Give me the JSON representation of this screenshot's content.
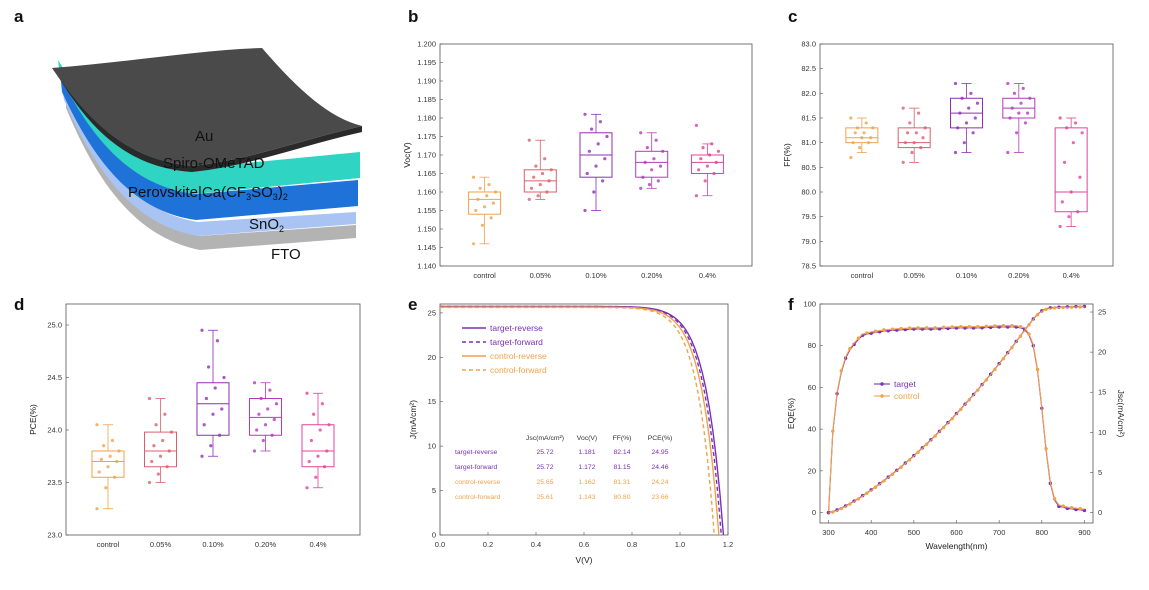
{
  "panel_labels": {
    "a": "a",
    "b": "b",
    "c": "c",
    "d": "d",
    "e": "e",
    "f": "f"
  },
  "colors": {
    "control": "#F0A24A",
    "c005": "#D8606B",
    "c010": "#8E2FB3",
    "c020": "#B23BB8",
    "c04": "#E0449A",
    "target": "#7A2FB5"
  },
  "layers": {
    "au": "Au",
    "spiro": "Spiro-OMeTAD",
    "perovskite": "Perovskite|Ca(CF",
    "perovskite_sub1": "3",
    "perovskite_mid": "SO",
    "perovskite_sub2": "3",
    "perovskite_close": ")",
    "perovskite_sub3": "2",
    "sno2": "SnO",
    "sno2_sub": "2",
    "fto": "FTO"
  },
  "chart_data": [
    {
      "id": "b",
      "type": "box",
      "ylabel": "Voc(V)",
      "categories": [
        "control",
        "0.05%",
        "0.10%",
        "0.20%",
        "0.4%"
      ],
      "ylim": [
        1.14,
        1.2
      ],
      "yticks": [
        "1.140",
        "1.145",
        "1.150",
        "1.155",
        "1.160",
        "1.165",
        "1.170",
        "1.175",
        "1.180",
        "1.185",
        "1.190",
        "1.195",
        "1.200"
      ],
      "ytick_values": [
        1.14,
        1.145,
        1.15,
        1.155,
        1.16,
        1.165,
        1.17,
        1.175,
        1.18,
        1.185,
        1.19,
        1.195,
        1.2
      ],
      "boxes": [
        {
          "min": 1.146,
          "q1": 1.154,
          "median": 1.158,
          "q3": 1.16,
          "max": 1.164
        },
        {
          "min": 1.158,
          "q1": 1.16,
          "median": 1.163,
          "q3": 1.166,
          "max": 1.174
        },
        {
          "min": 1.155,
          "q1": 1.164,
          "median": 1.17,
          "q3": 1.176,
          "max": 1.181
        },
        {
          "min": 1.161,
          "q1": 1.164,
          "median": 1.168,
          "q3": 1.171,
          "max": 1.176
        },
        {
          "min": 1.159,
          "q1": 1.165,
          "median": 1.168,
          "q3": 1.17,
          "max": 1.173
        }
      ],
      "points": [
        [
          1.146,
          1.151,
          1.153,
          1.155,
          1.156,
          1.157,
          1.158,
          1.159,
          1.16,
          1.161,
          1.162,
          1.164
        ],
        [
          1.158,
          1.159,
          1.16,
          1.161,
          1.162,
          1.163,
          1.164,
          1.165,
          1.166,
          1.167,
          1.169,
          1.174
        ],
        [
          1.155,
          1.16,
          1.163,
          1.165,
          1.167,
          1.169,
          1.171,
          1.173,
          1.175,
          1.177,
          1.179,
          1.181
        ],
        [
          1.161,
          1.162,
          1.163,
          1.164,
          1.166,
          1.167,
          1.168,
          1.169,
          1.171,
          1.172,
          1.174,
          1.176
        ],
        [
          1.159,
          1.163,
          1.165,
          1.166,
          1.167,
          1.168,
          1.169,
          1.17,
          1.171,
          1.172,
          1.173,
          1.178
        ]
      ]
    },
    {
      "id": "c",
      "type": "box",
      "ylabel": "FF(%)",
      "categories": [
        "control",
        "0.05%",
        "0.10%",
        "0.20%",
        "0.4%"
      ],
      "ylim": [
        78.5,
        83.0
      ],
      "yticks": [
        "78.5",
        "79.0",
        "79.5",
        "80.0",
        "80.5",
        "81.0",
        "81.5",
        "82.0",
        "82.5",
        "83.0"
      ],
      "ytick_values": [
        78.5,
        79.0,
        79.5,
        80.0,
        80.5,
        81.0,
        81.5,
        82.0,
        82.5,
        83.0
      ],
      "boxes": [
        {
          "min": 80.8,
          "q1": 81.0,
          "median": 81.1,
          "q3": 81.3,
          "max": 81.5
        },
        {
          "min": 80.6,
          "q1": 80.9,
          "median": 81.0,
          "q3": 81.3,
          "max": 81.7
        },
        {
          "min": 80.8,
          "q1": 81.3,
          "median": 81.6,
          "q3": 81.9,
          "max": 82.2
        },
        {
          "min": 80.8,
          "q1": 81.5,
          "median": 81.7,
          "q3": 81.9,
          "max": 82.2
        },
        {
          "min": 79.3,
          "q1": 79.6,
          "median": 80.0,
          "q3": 81.3,
          "max": 81.5
        }
      ],
      "points": [
        [
          80.7,
          80.9,
          81.0,
          81.0,
          81.1,
          81.1,
          81.2,
          81.2,
          81.3,
          81.3,
          81.4,
          81.5
        ],
        [
          80.6,
          80.8,
          80.9,
          81.0,
          81.0,
          81.1,
          81.2,
          81.2,
          81.3,
          81.4,
          81.6,
          81.7
        ],
        [
          80.8,
          81.0,
          81.2,
          81.3,
          81.4,
          81.5,
          81.6,
          81.7,
          81.8,
          81.9,
          82.0,
          82.2
        ],
        [
          80.8,
          81.2,
          81.4,
          81.5,
          81.6,
          81.6,
          81.7,
          81.8,
          81.9,
          82.0,
          82.1,
          82.2
        ],
        [
          79.3,
          79.5,
          79.6,
          79.8,
          80.0,
          80.3,
          80.6,
          81.0,
          81.2,
          81.3,
          81.4,
          81.5
        ]
      ]
    },
    {
      "id": "d",
      "type": "box",
      "ylabel": "PCE(%)",
      "categories": [
        "control",
        "0.05%",
        "0.10%",
        "0.20%",
        "0.4%"
      ],
      "ylim": [
        23.0,
        25.2
      ],
      "yticks": [
        "23.0",
        "23.5",
        "24.0",
        "24.5",
        "25.0"
      ],
      "ytick_values": [
        23.0,
        23.5,
        24.0,
        24.5,
        25.0
      ],
      "boxes": [
        {
          "min": 23.25,
          "q1": 23.55,
          "median": 23.7,
          "q3": 23.8,
          "max": 24.05
        },
        {
          "min": 23.5,
          "q1": 23.65,
          "median": 23.8,
          "q3": 23.98,
          "max": 24.3
        },
        {
          "min": 23.75,
          "q1": 23.95,
          "median": 24.25,
          "q3": 24.45,
          "max": 24.95
        },
        {
          "min": 23.8,
          "q1": 23.95,
          "median": 24.12,
          "q3": 24.3,
          "max": 24.45
        },
        {
          "min": 23.45,
          "q1": 23.65,
          "median": 23.8,
          "q3": 24.05,
          "max": 24.35
        }
      ],
      "points": [
        [
          23.25,
          23.45,
          23.55,
          23.6,
          23.65,
          23.7,
          23.72,
          23.75,
          23.8,
          23.85,
          23.9,
          24.05
        ],
        [
          23.5,
          23.58,
          23.65,
          23.7,
          23.75,
          23.8,
          23.85,
          23.9,
          23.98,
          24.05,
          24.15,
          24.3
        ],
        [
          23.75,
          23.85,
          23.95,
          24.05,
          24.15,
          24.2,
          24.3,
          24.4,
          24.5,
          24.6,
          24.85,
          24.95
        ],
        [
          23.8,
          23.9,
          23.95,
          24.0,
          24.05,
          24.1,
          24.15,
          24.2,
          24.25,
          24.3,
          24.38,
          24.45
        ],
        [
          23.45,
          23.55,
          23.65,
          23.7,
          23.75,
          23.8,
          23.9,
          24.0,
          24.05,
          24.15,
          24.25,
          24.35
        ]
      ]
    },
    {
      "id": "e",
      "type": "line",
      "xlabel": "V(V)",
      "ylabel": "J(mA/cm²)",
      "xlim": [
        0.0,
        1.2
      ],
      "ylim": [
        0,
        26
      ],
      "xticks": [
        "0.0",
        "0.2",
        "0.4",
        "0.6",
        "0.8",
        "1.0",
        "1.2"
      ],
      "xtick_values": [
        0.0,
        0.2,
        0.4,
        0.6,
        0.8,
        1.0,
        1.2
      ],
      "yticks": [
        "0",
        "5",
        "10",
        "15",
        "20",
        "25"
      ],
      "ytick_values": [
        0,
        5,
        10,
        15,
        20,
        25
      ],
      "series": [
        {
          "name": "target-reverse",
          "style": "solid",
          "color": "#7A2FB5",
          "jsc": 25.72,
          "voc": 1.181
        },
        {
          "name": "target-forward",
          "style": "dashed",
          "color": "#7A2FB5",
          "jsc": 25.72,
          "voc": 1.172
        },
        {
          "name": "control-reverse",
          "style": "solid",
          "color": "#F0A24A",
          "jsc": 25.65,
          "voc": 1.162
        },
        {
          "name": "control-forward",
          "style": "dashed",
          "color": "#F0A24A",
          "jsc": 25.61,
          "voc": 1.143
        }
      ],
      "table": {
        "headers": [
          "Jsc(mA/cm²)",
          "Voc(V)",
          "FF(%)",
          "PCE(%)"
        ],
        "rows": [
          {
            "label": "target-reverse",
            "values": [
              "25.72",
              "1.181",
              "82.14",
              "24.95"
            ]
          },
          {
            "label": "target-forward",
            "values": [
              "25.72",
              "1.172",
              "81.15",
              "24.46"
            ]
          },
          {
            "label": "control-reverse",
            "values": [
              "25.65",
              "1.162",
              "81.31",
              "24.24"
            ]
          },
          {
            "label": "control-forward",
            "values": [
              "25.61",
              "1.143",
              "80.80",
              "23.66"
            ]
          }
        ]
      }
    },
    {
      "id": "f",
      "type": "line",
      "xlabel": "Wavelength(nm)",
      "ylabel": "EQE(%)",
      "ylabel2": "Jsc(mA/cm²)",
      "xlim": [
        280,
        920
      ],
      "ylim": [
        -5,
        100
      ],
      "y2lim": [
        -1.3,
        26
      ],
      "xticks": [
        "300",
        "400",
        "500",
        "600",
        "700",
        "800",
        "900"
      ],
      "xtick_values": [
        300,
        400,
        500,
        600,
        700,
        800,
        900
      ],
      "yticks": [
        "0",
        "20",
        "40",
        "60",
        "80",
        "100"
      ],
      "ytick_values": [
        0,
        20,
        40,
        60,
        80,
        100
      ],
      "y2ticks": [
        "0",
        "5",
        "10",
        "15",
        "20",
        "25"
      ],
      "y2tick_values": [
        0,
        5,
        10,
        15,
        20,
        25
      ],
      "series": [
        {
          "name": "target",
          "color": "#7A2FB5"
        },
        {
          "name": "control",
          "color": "#F0A24A"
        }
      ],
      "eqe_knots": [
        [
          300,
          0
        ],
        [
          305,
          22
        ],
        [
          312,
          45
        ],
        [
          322,
          60
        ],
        [
          335,
          72
        ],
        [
          350,
          78
        ],
        [
          365,
          82
        ],
        [
          380,
          85
        ],
        [
          400,
          86
        ],
        [
          430,
          87
        ],
        [
          460,
          87.5
        ],
        [
          500,
          88
        ],
        [
          550,
          88
        ],
        [
          600,
          88.5
        ],
        [
          650,
          88.5
        ],
        [
          700,
          89
        ],
        [
          740,
          89
        ],
        [
          760,
          88
        ],
        [
          770,
          85
        ],
        [
          780,
          80
        ],
        [
          790,
          68
        ],
        [
          800,
          50
        ],
        [
          810,
          30
        ],
        [
          820,
          14
        ],
        [
          830,
          6
        ],
        [
          840,
          3
        ],
        [
          860,
          2
        ],
        [
          880,
          1.5
        ],
        [
          900,
          1
        ]
      ],
      "jsc_total": 25.7
    }
  ]
}
